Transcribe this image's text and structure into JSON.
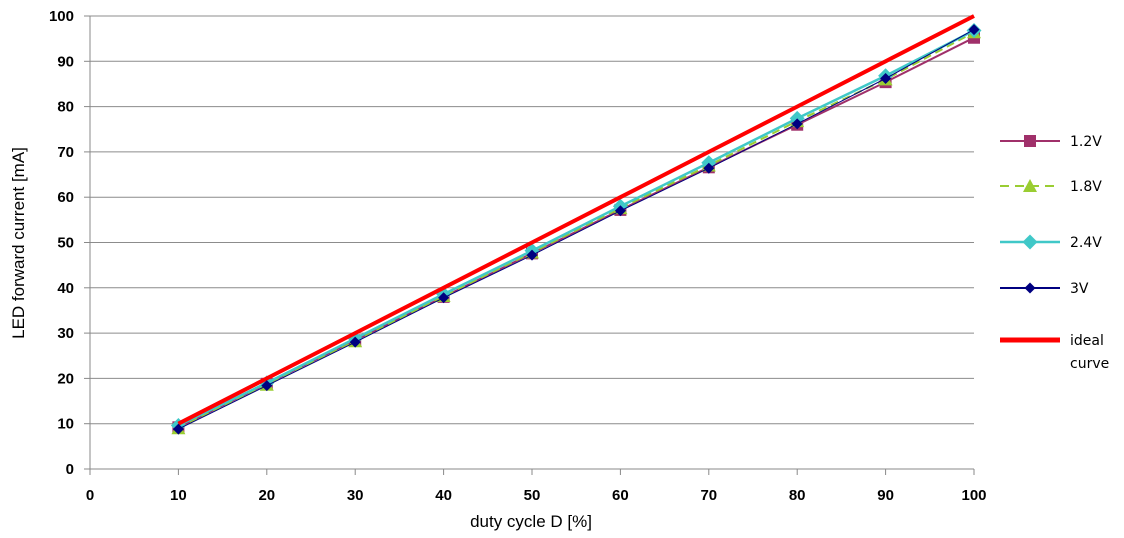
{
  "chart_data": {
    "type": "line",
    "title": "",
    "xlabel": "duty cycle D [%]",
    "ylabel": "LED forward current [mA]",
    "xlim": [
      0,
      100
    ],
    "ylim": [
      0,
      100
    ],
    "xticks": [
      "0",
      "10",
      "20",
      "30",
      "40",
      "50",
      "60",
      "70",
      "80",
      "90",
      "100"
    ],
    "yticks": [
      "0",
      "10",
      "20",
      "30",
      "40",
      "50",
      "60",
      "70",
      "80",
      "90",
      "100"
    ],
    "grid": "horizontal",
    "legend_position": "right",
    "x": [
      10,
      20,
      30,
      40,
      50,
      60,
      70,
      80,
      90,
      100
    ],
    "series": [
      {
        "name": "1.2V",
        "color": "#a0306a",
        "marker": "square",
        "dash": "solid",
        "values": [
          9.2,
          18.8,
          28.4,
          38.0,
          47.6,
          57.2,
          66.6,
          76.0,
          85.4,
          95.2
        ]
      },
      {
        "name": "1.8V",
        "color": "#9acd32",
        "marker": "triangle",
        "dash": "dashed",
        "values": [
          9.0,
          18.6,
          28.2,
          38.2,
          47.8,
          57.6,
          67.0,
          76.8,
          86.0,
          96.4
        ]
      },
      {
        "name": "2.4V",
        "color": "#40c8c8",
        "marker": "diamond",
        "dash": "solid",
        "values": [
          9.6,
          19.0,
          28.8,
          38.6,
          48.2,
          58.0,
          67.6,
          77.4,
          86.8,
          96.8
        ]
      },
      {
        "name": "3V",
        "color": "#000080",
        "marker": "diamond-small",
        "dash": "solid",
        "values": [
          8.8,
          18.4,
          28.0,
          37.8,
          47.2,
          57.0,
          66.4,
          76.2,
          86.2,
          97.0
        ]
      },
      {
        "name": "ideal curve",
        "color": "#ff0000",
        "marker": "none",
        "dash": "solid",
        "values": [
          10,
          20,
          30,
          40,
          50,
          60,
          70,
          80,
          90,
          100
        ]
      }
    ]
  }
}
